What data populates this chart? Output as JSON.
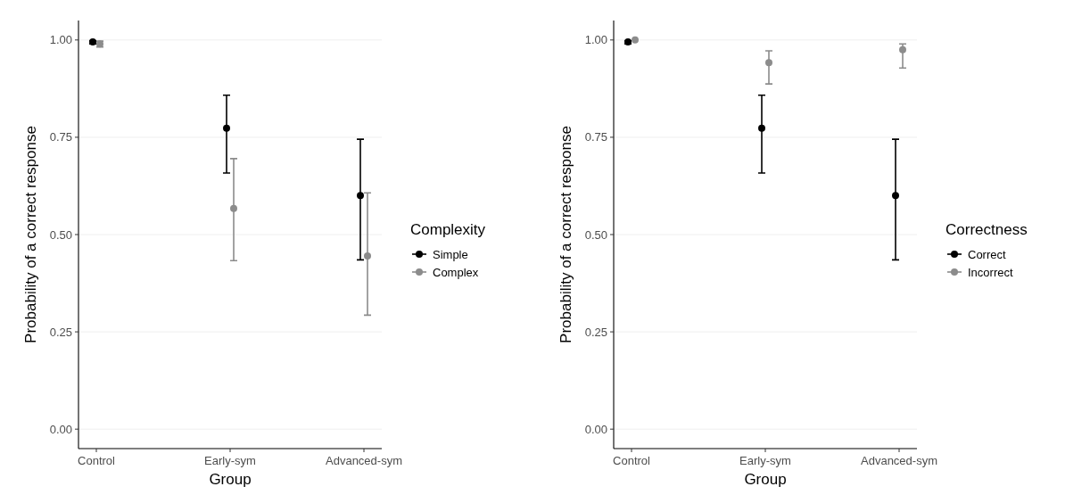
{
  "chart_data": [
    {
      "type": "scatter",
      "xlabel": "Group",
      "ylabel": "Probability of a correct response",
      "legend_title": "Complexity",
      "categories": [
        "Control",
        "Early-sym",
        "Advanced-sym"
      ],
      "ylim": [
        -0.05,
        1.05
      ],
      "yticks": [
        {
          "value": 0,
          "label": "0.00"
        },
        {
          "value": 0.25,
          "label": "0.25"
        },
        {
          "value": 0.5,
          "label": "0.50"
        },
        {
          "value": 0.75,
          "label": "0.75"
        },
        {
          "value": 1,
          "label": "1.00"
        }
      ],
      "grid": "y",
      "legend": "right",
      "marker": "circle",
      "series": [
        {
          "name": "Simple",
          "color": "#000000",
          "values": [
            0.995,
            0.773,
            0.6
          ],
          "errors": [
            [
              0.99,
              0.998
            ],
            [
              0.658,
              0.858
            ],
            [
              0.435,
              0.745
            ]
          ]
        },
        {
          "name": "Complex",
          "color": "#8c8c8c",
          "values": [
            0.99,
            0.567,
            0.445
          ],
          "errors": [
            [
              0.982,
              0.997
            ],
            [
              0.433,
              0.695
            ],
            [
              0.293,
              0.607
            ]
          ]
        }
      ]
    },
    {
      "type": "scatter",
      "xlabel": "Group",
      "ylabel": "Probability of a correct response",
      "legend_title": "Correctness",
      "categories": [
        "Control",
        "Early-sym",
        "Advanced-sym"
      ],
      "ylim": [
        -0.05,
        1.05
      ],
      "yticks": [
        {
          "value": 0,
          "label": "0.00"
        },
        {
          "value": 0.25,
          "label": "0.25"
        },
        {
          "value": 0.5,
          "label": "0.50"
        },
        {
          "value": 0.75,
          "label": "0.75"
        },
        {
          "value": 1,
          "label": "1.00"
        }
      ],
      "grid": "y",
      "legend": "right",
      "marker": "circle",
      "series": [
        {
          "name": "Correct",
          "color": "#000000",
          "values": [
            0.995,
            0.773,
            0.6
          ],
          "errors": [
            [
              0.99,
              0.998
            ],
            [
              0.658,
              0.858
            ],
            [
              0.435,
              0.745
            ]
          ]
        },
        {
          "name": "Incorrect",
          "color": "#8c8c8c",
          "values": [
            1.0,
            0.942,
            0.975
          ],
          "errors": [
            null,
            [
              0.887,
              0.972
            ],
            [
              0.928,
              0.99
            ]
          ]
        }
      ]
    }
  ]
}
